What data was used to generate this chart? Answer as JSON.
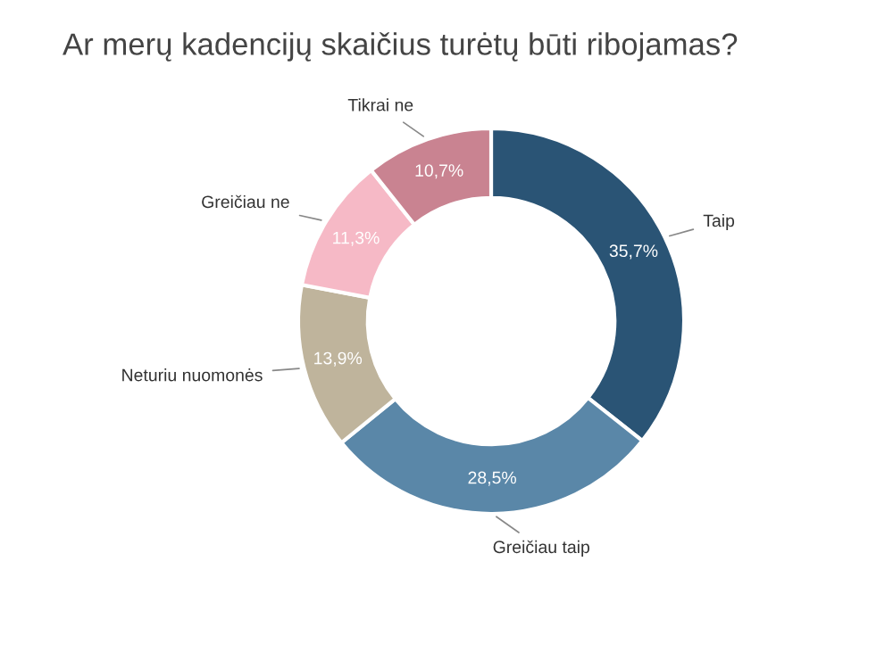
{
  "chart_data": {
    "type": "donut",
    "title": "Ar merų kadencijų skaičius turėtų būti ribojamas?",
    "categories": [
      "Taip",
      "Greičiau taip",
      "Neturiu nuomonės",
      "Greičiau ne",
      "Tikrai ne"
    ],
    "values": [
      35.7,
      28.5,
      13.9,
      11.3,
      10.7
    ],
    "value_labels": [
      "35,7%",
      "28,5%",
      "13,9%",
      "11,3%",
      "10,7%"
    ],
    "colors": [
      "#2a5475",
      "#5a87a8",
      "#bfb49c",
      "#f6b9c6",
      "#c98391"
    ],
    "legend": false
  }
}
